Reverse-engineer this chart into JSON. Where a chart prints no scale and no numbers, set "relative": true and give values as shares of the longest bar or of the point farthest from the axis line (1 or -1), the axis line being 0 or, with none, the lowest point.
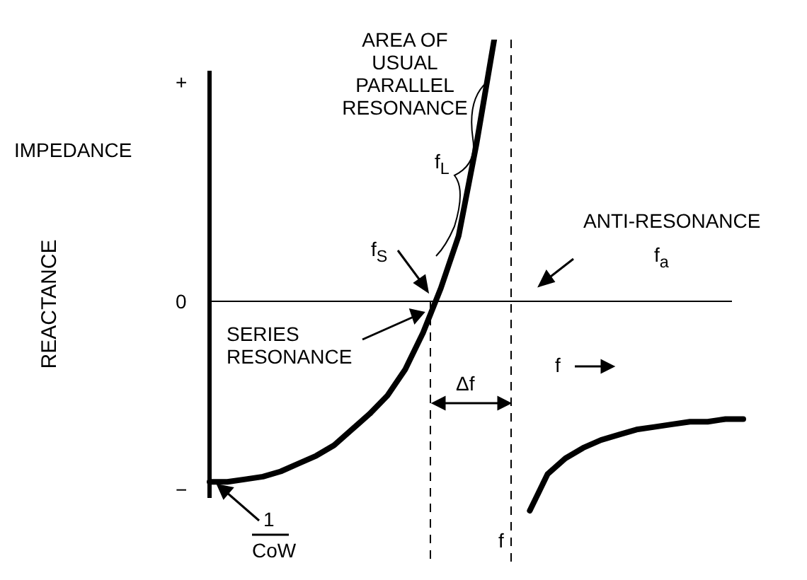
{
  "chart_data": {
    "type": "line",
    "relative": true,
    "categories": [
      null,
      null,
      null,
      null,
      null,
      null,
      null,
      null,
      null,
      null,
      null,
      null,
      null,
      null,
      null,
      null,
      null,
      null,
      null,
      null,
      null,
      null,
      null,
      null,
      null,
      null,
      null,
      null,
      null,
      null,
      null
    ],
    "series": [
      {
        "color": "#000000",
        "values": [
          -0.69,
          -0.69,
          -0.68,
          -0.67,
          -0.65,
          -0.62,
          -0.59,
          -0.55,
          -0.49,
          -0.43,
          -0.36,
          -0.26,
          -0.12,
          0.05,
          0.25,
          0.6,
          1,
          null,
          null,
          null,
          null,
          null,
          null,
          null,
          null,
          null,
          null,
          null,
          null,
          null,
          null
        ]
      },
      {
        "color": "#000000",
        "values": [
          null,
          null,
          null,
          null,
          null,
          null,
          null,
          null,
          null,
          null,
          null,
          null,
          null,
          null,
          null,
          null,
          null,
          null,
          -0.8,
          -0.66,
          -0.6,
          -0.56,
          -0.53,
          -0.51,
          -0.49,
          -0.48,
          -0.47,
          -0.46,
          -0.46,
          -0.45,
          -0.45
        ]
      }
    ],
    "marker": "none",
    "line_style": "solid",
    "legend": false,
    "annotations": [
      "AREA OF USUAL PARALLEL RESONANCE",
      "f$_{L}$",
      "f$_{S}$",
      "ANTI-RESONANCE",
      "f$_{a}$",
      "SERIES RESONANCE",
      "Δf",
      "f",
      "f",
      "IMPEDANCE",
      "+",
      "0",
      "−",
      "1",
      "CoW",
      "REACTANCE"
    ]
  }
}
